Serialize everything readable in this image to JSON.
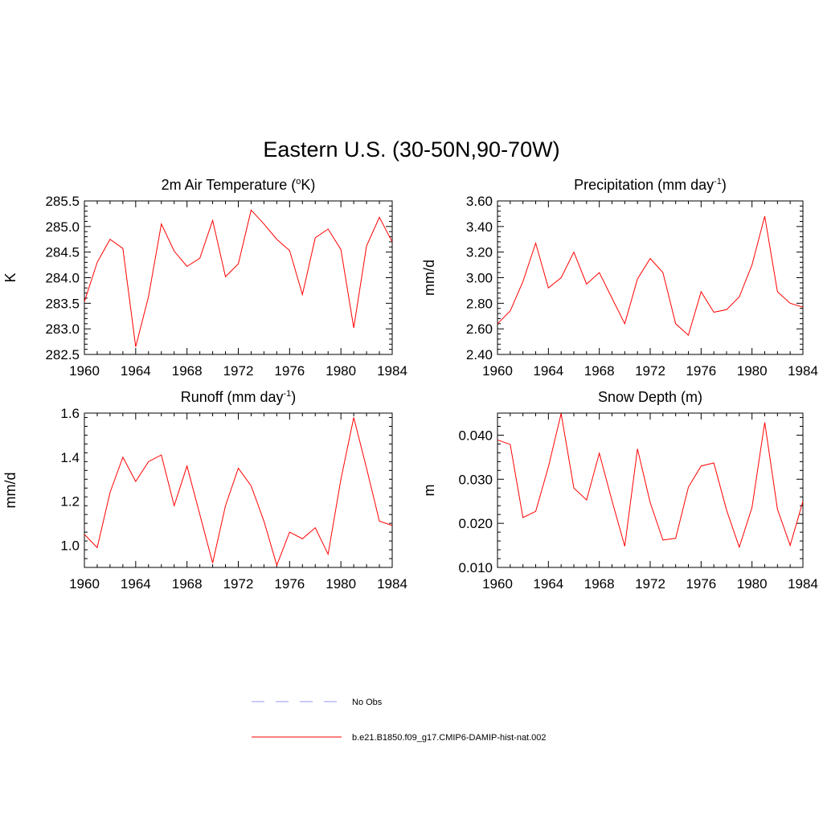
{
  "figure": {
    "title": "Eastern U.S. (30-50N,90-70W)"
  },
  "legend": [
    {
      "label": "No Obs",
      "color": "#9999ff",
      "style": "dashed"
    },
    {
      "label": "b.e21.B1850.f09_g17.CMIP6-DAMIP-hist-nat.002",
      "color": "#ff0000",
      "style": "solid"
    }
  ],
  "chart_data": [
    {
      "type": "line",
      "title_main": "2m Air Temperature (",
      "title_sup": "o",
      "title_end": "K)",
      "ylabel": "K",
      "xlim": [
        1960,
        1984
      ],
      "ylim": [
        282.5,
        285.5
      ],
      "xticks": [
        "1960",
        "1964",
        "1968",
        "1972",
        "1976",
        "1980",
        "1984"
      ],
      "yticks": [
        "282.5",
        "283.0",
        "283.5",
        "284.0",
        "284.5",
        "285.0",
        "285.5"
      ],
      "series": [
        {
          "color": "#ff0000",
          "x": [
            1960,
            1961,
            1962,
            1963,
            1964,
            1965,
            1966,
            1967,
            1968,
            1969,
            1970,
            1971,
            1972,
            1973,
            1974,
            1975,
            1976,
            1977,
            1978,
            1979,
            1980,
            1981,
            1982,
            1983,
            1984
          ],
          "values": [
            283.53,
            284.3,
            284.75,
            284.57,
            282.65,
            283.63,
            285.05,
            284.52,
            284.22,
            284.38,
            285.12,
            284.02,
            284.27,
            285.32,
            285.05,
            284.75,
            284.53,
            283.67,
            284.78,
            284.95,
            284.55,
            283.02,
            284.62,
            285.18,
            284.7
          ]
        }
      ]
    },
    {
      "type": "line",
      "title_main": "Precipitation (mm day",
      "title_sup": "-1",
      "title_end": ")",
      "ylabel": "mm/d",
      "xlim": [
        1960,
        1984
      ],
      "ylim": [
        2.4,
        3.6
      ],
      "xticks": [
        "1960",
        "1964",
        "1968",
        "1972",
        "1976",
        "1980",
        "1984"
      ],
      "yticks": [
        "2.40",
        "2.60",
        "2.80",
        "3.00",
        "3.20",
        "3.40",
        "3.60"
      ],
      "series": [
        {
          "color": "#ff0000",
          "x": [
            1960,
            1961,
            1962,
            1963,
            1964,
            1965,
            1966,
            1967,
            1968,
            1969,
            1970,
            1971,
            1972,
            1973,
            1974,
            1975,
            1976,
            1977,
            1978,
            1979,
            1980,
            1981,
            1982,
            1983,
            1984
          ],
          "values": [
            2.64,
            2.74,
            2.97,
            3.27,
            2.92,
            3.0,
            3.2,
            2.95,
            3.04,
            2.84,
            2.64,
            2.99,
            3.15,
            3.04,
            2.64,
            2.55,
            2.89,
            2.73,
            2.75,
            2.85,
            3.1,
            3.48,
            2.89,
            2.8,
            2.77
          ]
        }
      ]
    },
    {
      "type": "line",
      "title_main": "Runoff (mm day",
      "title_sup": "-1",
      "title_end": ")",
      "ylabel": "mm/d",
      "xlim": [
        1960,
        1984
      ],
      "ylim": [
        0.9,
        1.6
      ],
      "xticks": [
        "1960",
        "1964",
        "1968",
        "1972",
        "1976",
        "1980",
        "1984"
      ],
      "yticks": [
        "1.0",
        "1.2",
        "1.4",
        "1.6"
      ],
      "ytick_values": [
        1.0,
        1.2,
        1.4,
        1.6
      ],
      "series": [
        {
          "color": "#ff0000",
          "x": [
            1960,
            1961,
            1962,
            1963,
            1964,
            1965,
            1966,
            1967,
            1968,
            1969,
            1970,
            1971,
            1972,
            1973,
            1974,
            1975,
            1976,
            1977,
            1978,
            1979,
            1980,
            1981,
            1982,
            1983,
            1984
          ],
          "values": [
            1.05,
            0.99,
            1.24,
            1.4,
            1.29,
            1.38,
            1.41,
            1.18,
            1.36,
            1.14,
            0.92,
            1.18,
            1.35,
            1.27,
            1.11,
            0.91,
            1.06,
            1.03,
            1.08,
            0.96,
            1.3,
            1.58,
            1.35,
            1.11,
            1.09
          ]
        }
      ]
    },
    {
      "type": "line",
      "title_main": "Snow Depth (m)",
      "title_sup": "",
      "title_end": "",
      "ylabel": "m",
      "xlim": [
        1960,
        1984
      ],
      "ylim": [
        0.01,
        0.045
      ],
      "xticks": [
        "1960",
        "1964",
        "1968",
        "1972",
        "1976",
        "1980",
        "1984"
      ],
      "yticks": [
        "0.010",
        "0.020",
        "0.030",
        "0.040"
      ],
      "ytick_values": [
        0.01,
        0.02,
        0.03,
        0.04
      ],
      "series": [
        {
          "color": "#ff0000",
          "x": [
            1960,
            1961,
            1962,
            1963,
            1964,
            1965,
            1966,
            1967,
            1968,
            1969,
            1970,
            1971,
            1972,
            1973,
            1974,
            1975,
            1976,
            1977,
            1978,
            1979,
            1980,
            1981,
            1982,
            1983,
            1984
          ],
          "values": [
            0.0389,
            0.0379,
            0.0213,
            0.0227,
            0.0328,
            0.0449,
            0.028,
            0.0253,
            0.0359,
            0.0251,
            0.0148,
            0.0369,
            0.0247,
            0.0162,
            0.0166,
            0.0282,
            0.033,
            0.0337,
            0.023,
            0.0146,
            0.0236,
            0.0429,
            0.0232,
            0.015,
            0.025
          ]
        }
      ]
    }
  ]
}
